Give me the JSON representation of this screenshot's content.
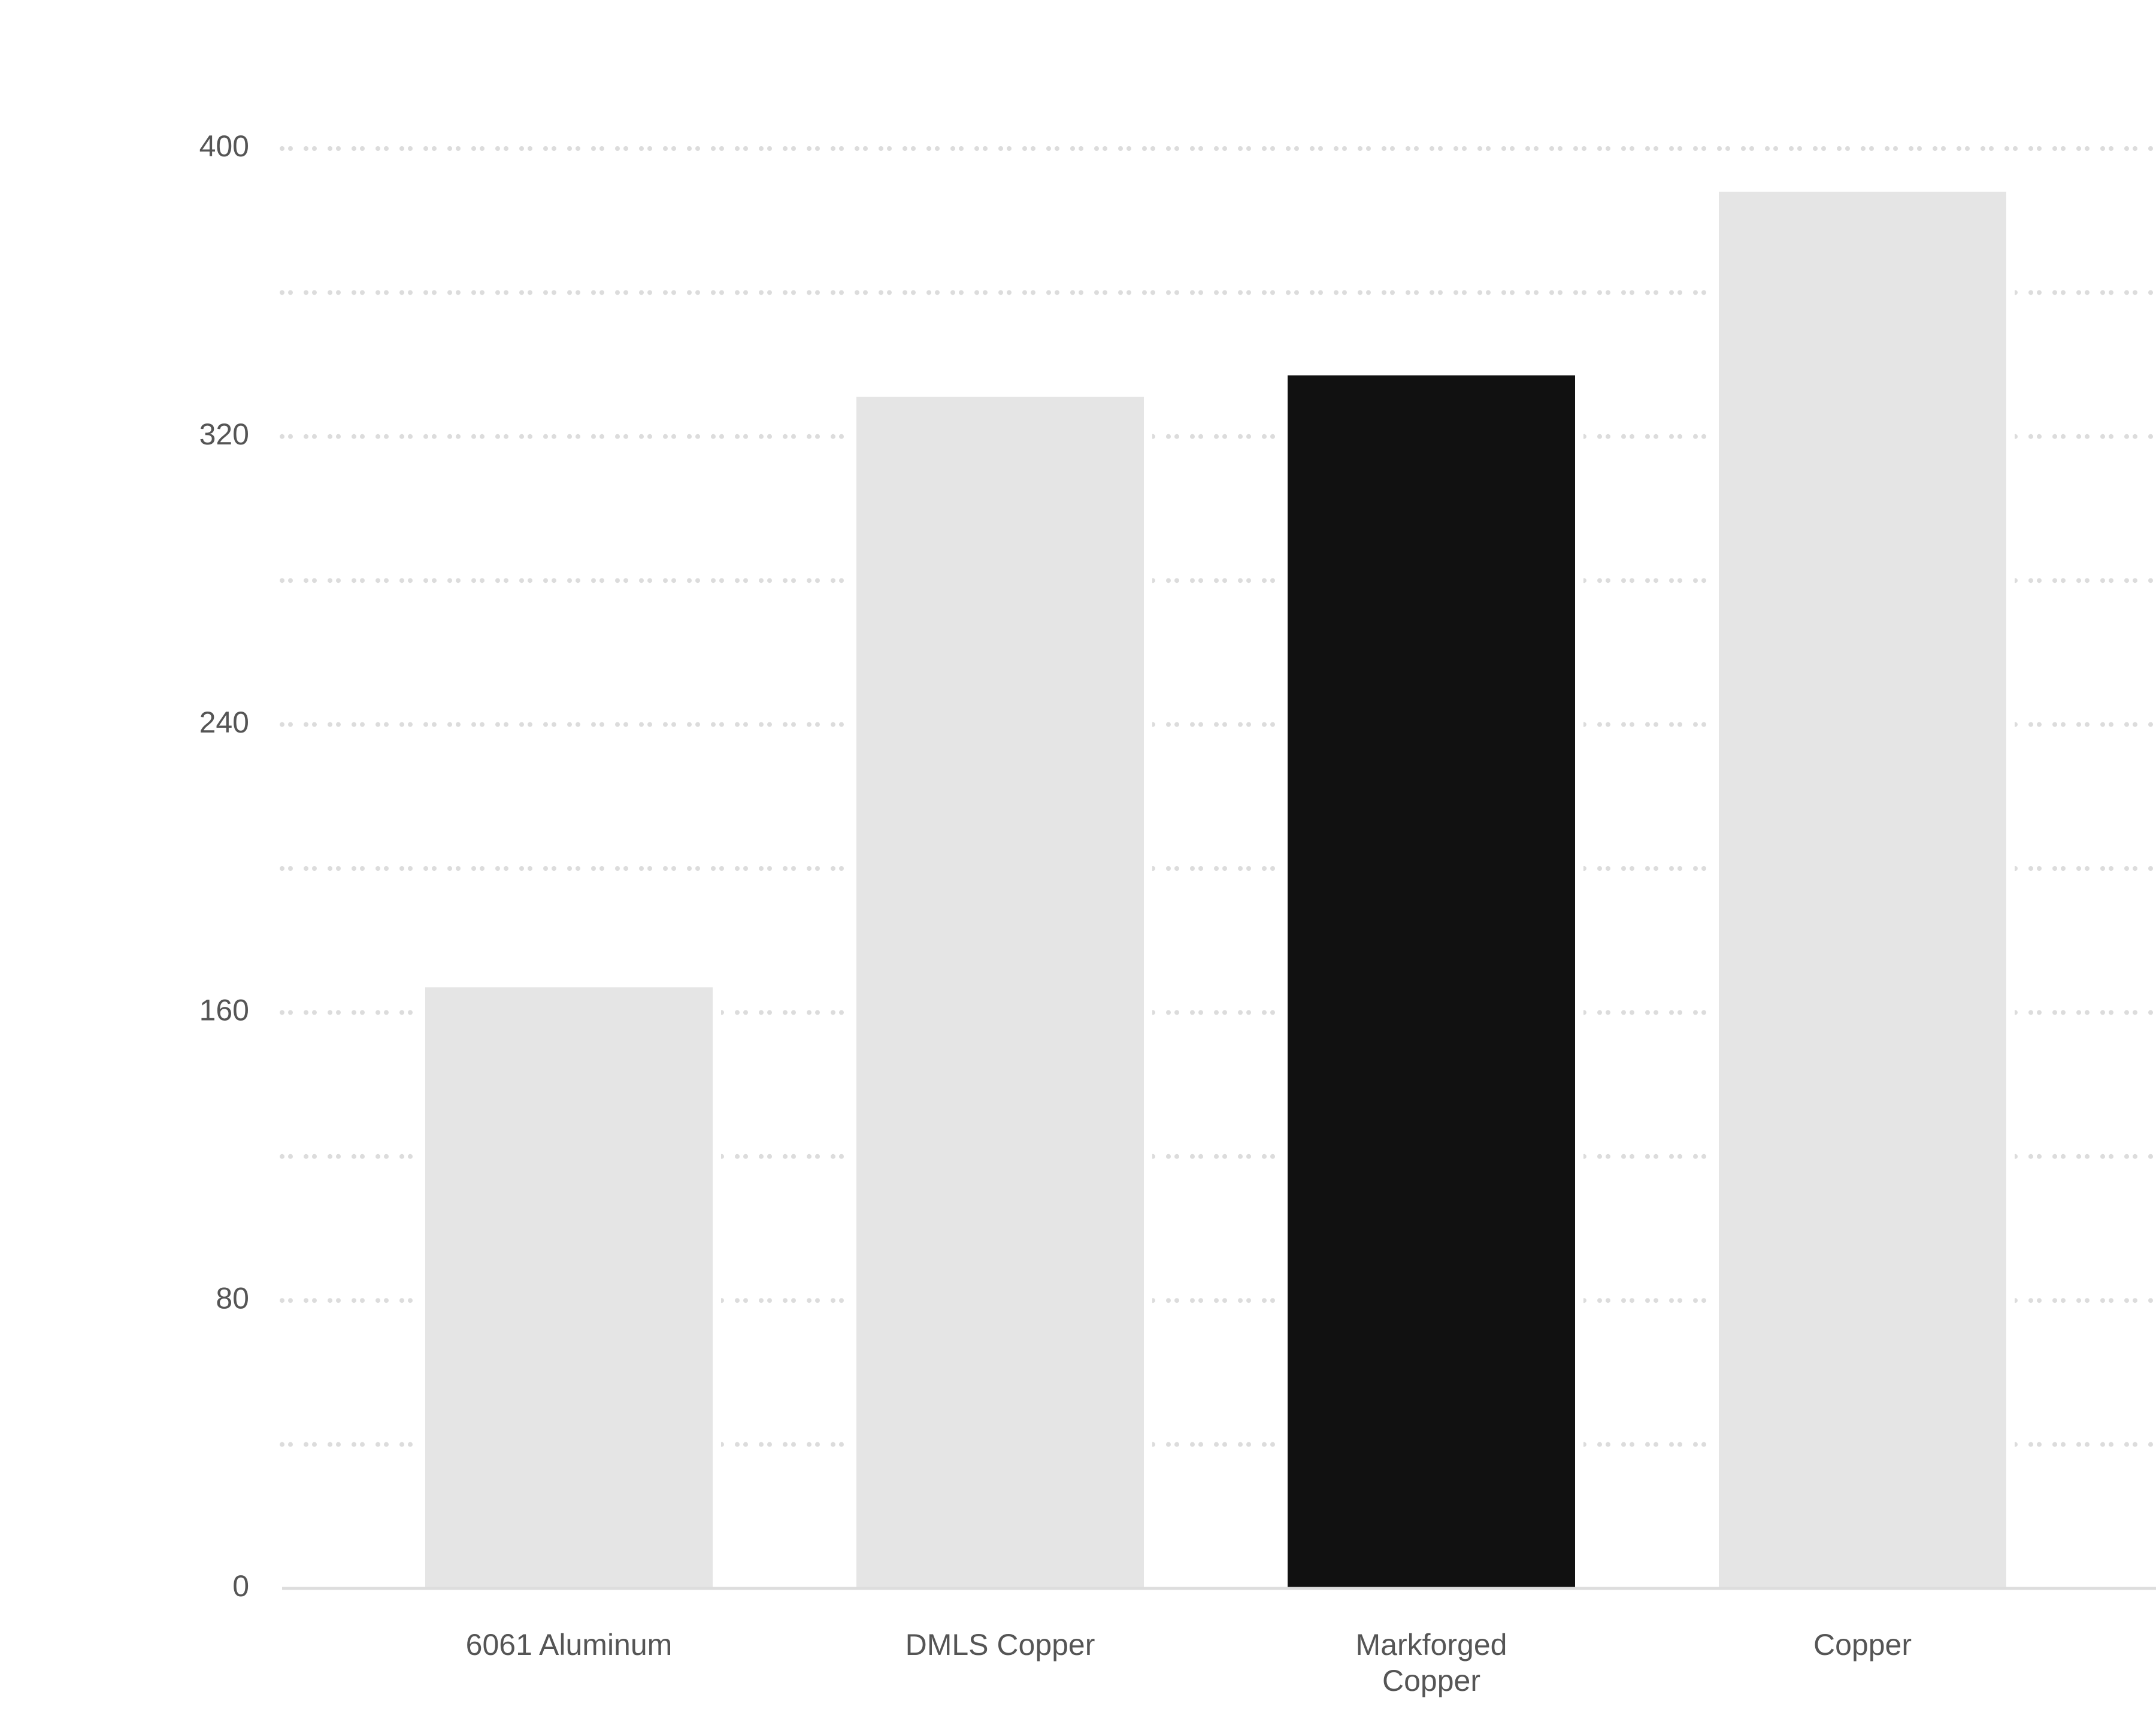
{
  "chart_data": {
    "type": "bar",
    "categories": [
      "6061 Aluminum",
      "DMLS Copper",
      "Markforged Copper",
      "Copper"
    ],
    "values": [
      167,
      331,
      337,
      388
    ],
    "colors": [
      "#e5e5e5",
      "#e5e5e5",
      "#111111",
      "#e5e5e5"
    ],
    "ylim": [
      0,
      400
    ],
    "yticks": [
      0,
      80,
      160,
      240,
      320,
      400
    ],
    "minor_yticks": [
      40,
      120,
      200,
      280,
      360
    ],
    "grid": true
  }
}
